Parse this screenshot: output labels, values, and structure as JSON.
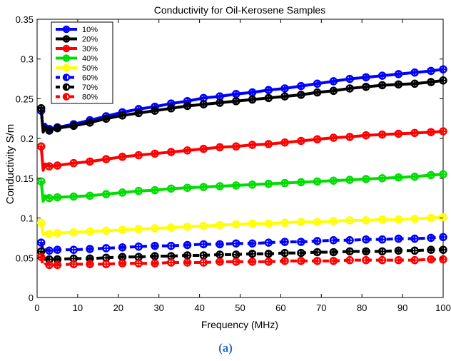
{
  "caption": "(a)",
  "chart_data": {
    "type": "line",
    "title": "Conductivity for Oil-Kerosene Samples",
    "xlabel": "Frequency (MHz)",
    "ylabel": "Conductivity S/m",
    "xlim": [
      0,
      100
    ],
    "ylim": [
      0,
      0.35
    ],
    "xticks": [
      "0",
      "10",
      "20",
      "30",
      "40",
      "50",
      "60",
      "70",
      "80",
      "90",
      "100"
    ],
    "yticks": [
      "0",
      "0.05",
      "0.1",
      "0.15",
      "0.2",
      "0.25",
      "0.3",
      "0.35"
    ],
    "grid": false,
    "legend_position": "top-left",
    "x": [
      1,
      1.5,
      2,
      3,
      5,
      9,
      13,
      17,
      21,
      25,
      29,
      33,
      37,
      41,
      45,
      49,
      53,
      57,
      61,
      65,
      69,
      73,
      77,
      81,
      85,
      89,
      93,
      97,
      100
    ],
    "series": [
      {
        "name": "10%",
        "color": "#0000ff",
        "dash": false,
        "values": [
          0.235,
          0.209,
          0.218,
          0.212,
          0.214,
          0.218,
          0.223,
          0.228,
          0.233,
          0.237,
          0.24,
          0.244,
          0.247,
          0.251,
          0.253,
          0.256,
          0.258,
          0.261,
          0.263,
          0.266,
          0.269,
          0.272,
          0.275,
          0.277,
          0.279,
          0.281,
          0.283,
          0.285,
          0.287
        ]
      },
      {
        "name": "20%",
        "color": "#000000",
        "dash": false,
        "values": [
          0.238,
          0.208,
          0.215,
          0.21,
          0.213,
          0.216,
          0.22,
          0.225,
          0.229,
          0.232,
          0.235,
          0.238,
          0.241,
          0.243,
          0.245,
          0.247,
          0.249,
          0.251,
          0.253,
          0.255,
          0.258,
          0.26,
          0.263,
          0.265,
          0.267,
          0.268,
          0.269,
          0.271,
          0.273
        ]
      },
      {
        "name": "30%",
        "color": "#ff0000",
        "dash": false,
        "values": [
          0.19,
          0.16,
          0.168,
          0.165,
          0.166,
          0.169,
          0.171,
          0.174,
          0.177,
          0.179,
          0.181,
          0.183,
          0.185,
          0.187,
          0.189,
          0.19,
          0.192,
          0.193,
          0.195,
          0.197,
          0.199,
          0.201,
          0.202,
          0.204,
          0.205,
          0.206,
          0.207,
          0.208,
          0.209
        ]
      },
      {
        "name": "40%",
        "color": "#00dd00",
        "dash": false,
        "values": [
          0.146,
          0.121,
          0.128,
          0.125,
          0.126,
          0.127,
          0.128,
          0.13,
          0.132,
          0.134,
          0.135,
          0.137,
          0.138,
          0.139,
          0.14,
          0.141,
          0.142,
          0.143,
          0.144,
          0.145,
          0.146,
          0.147,
          0.148,
          0.149,
          0.15,
          0.151,
          0.152,
          0.154,
          0.155
        ]
      },
      {
        "name": "50%",
        "color": "#ffff00",
        "dash": false,
        "values": [
          0.094,
          0.079,
          0.081,
          0.08,
          0.081,
          0.082,
          0.083,
          0.084,
          0.085,
          0.086,
          0.087,
          0.088,
          0.089,
          0.09,
          0.091,
          0.092,
          0.093,
          0.093,
          0.094,
          0.095,
          0.095,
          0.096,
          0.097,
          0.097,
          0.098,
          0.098,
          0.099,
          0.1,
          0.101
        ]
      },
      {
        "name": "60%",
        "color": "#0000ff",
        "dash": true,
        "values": [
          0.069,
          0.058,
          0.06,
          0.059,
          0.06,
          0.06,
          0.061,
          0.062,
          0.063,
          0.064,
          0.065,
          0.065,
          0.066,
          0.067,
          0.067,
          0.068,
          0.068,
          0.069,
          0.07,
          0.07,
          0.071,
          0.072,
          0.072,
          0.073,
          0.073,
          0.074,
          0.074,
          0.075,
          0.076
        ]
      },
      {
        "name": "70%",
        "color": "#000000",
        "dash": true,
        "values": [
          0.058,
          0.046,
          0.049,
          0.048,
          0.048,
          0.049,
          0.049,
          0.05,
          0.051,
          0.051,
          0.052,
          0.052,
          0.053,
          0.053,
          0.054,
          0.054,
          0.055,
          0.055,
          0.056,
          0.056,
          0.057,
          0.057,
          0.058,
          0.058,
          0.058,
          0.059,
          0.059,
          0.06,
          0.06
        ]
      },
      {
        "name": "80%",
        "color": "#ff0000",
        "dash": true,
        "values": [
          0.051,
          0.04,
          0.042,
          0.041,
          0.041,
          0.042,
          0.042,
          0.042,
          0.043,
          0.043,
          0.043,
          0.044,
          0.044,
          0.044,
          0.045,
          0.045,
          0.045,
          0.045,
          0.046,
          0.046,
          0.046,
          0.046,
          0.047,
          0.047,
          0.047,
          0.047,
          0.047,
          0.048,
          0.048
        ]
      }
    ]
  }
}
